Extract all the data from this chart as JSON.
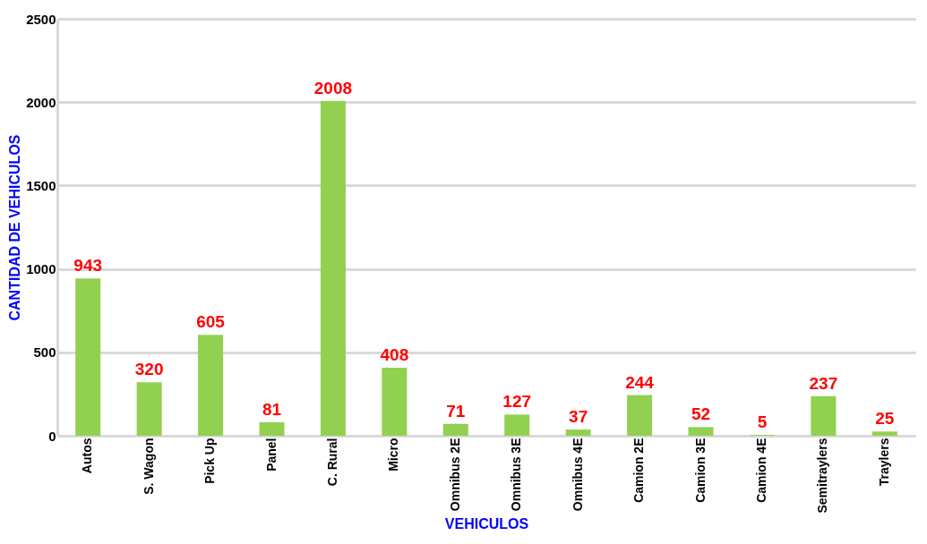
{
  "chart_data": {
    "type": "bar",
    "xlabel": "VEHICULOS",
    "ylabel": "CANTIDAD DE VEHICULOS",
    "categories": [
      "Autos",
      "S. Wagon",
      "Pick Up",
      "Panel",
      "C. Rural",
      "Micro",
      "Omnibus 2E",
      "Omnibus 3E",
      "Omnibus 4E",
      "Camion 2E",
      "Camion 3E",
      "Camion 4E",
      "Semitraylers",
      "Traylers"
    ],
    "values": [
      943,
      320,
      605,
      81,
      2008,
      408,
      71,
      127,
      37,
      244,
      52,
      5,
      237,
      25
    ],
    "color": "#92d050",
    "ylim": [
      0,
      2500
    ],
    "yticks": [
      0,
      500,
      1000,
      1500,
      2000,
      2500
    ],
    "grid": "y",
    "data_labels": true
  }
}
